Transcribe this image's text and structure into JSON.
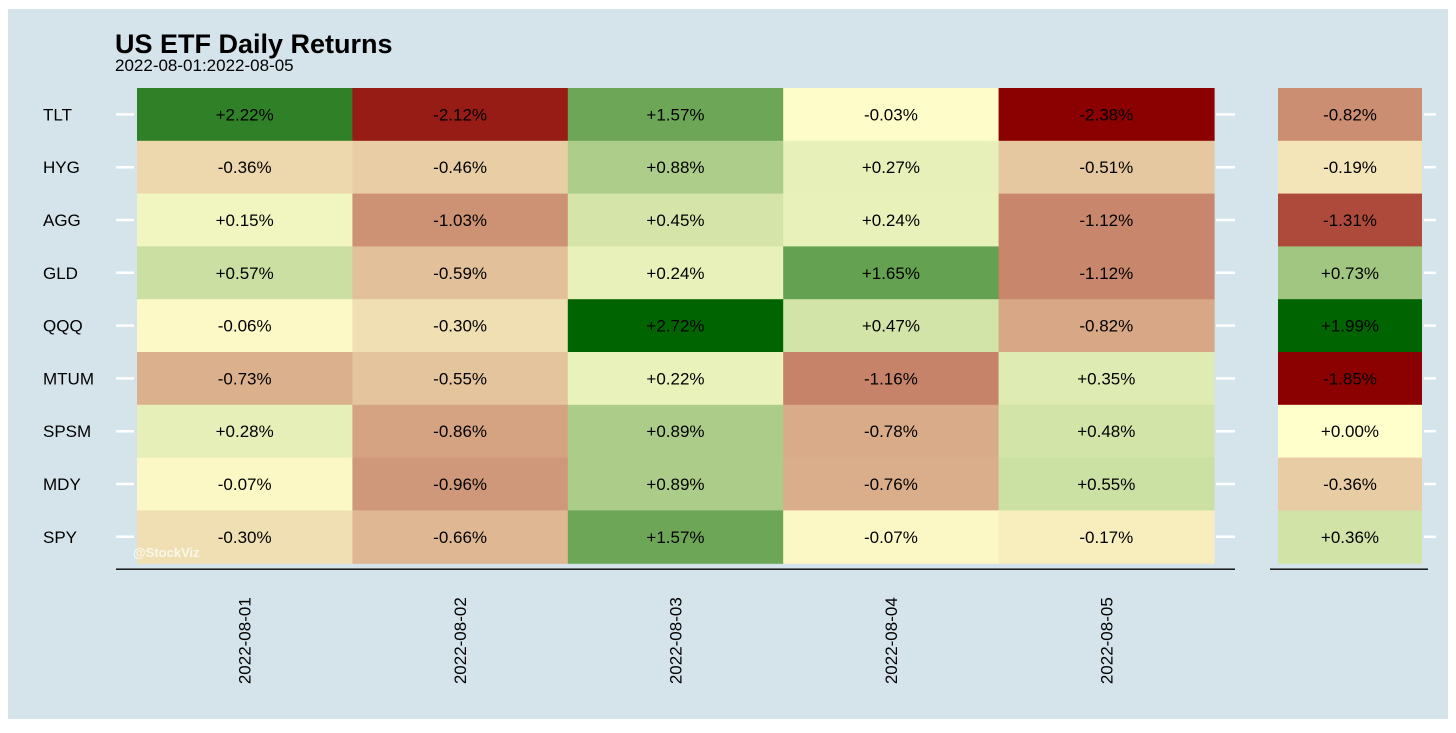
{
  "chart_data": {
    "type": "heatmap",
    "title": "US ETF Daily Returns",
    "subtitle": "2022-08-01:2022-08-05",
    "watermark": "@StockViz",
    "rows": [
      "TLT",
      "HYG",
      "AGG",
      "GLD",
      "QQQ",
      "MTUM",
      "SPSM",
      "MDY",
      "SPY"
    ],
    "columns": [
      "2022-08-01",
      "2022-08-02",
      "2022-08-03",
      "2022-08-04",
      "2022-08-05"
    ],
    "cells": [
      [
        "+2.22%",
        "-2.12%",
        "+1.57%",
        "-0.03%",
        "-2.38%"
      ],
      [
        "-0.36%",
        "-0.46%",
        "+0.88%",
        "+0.27%",
        "-0.51%"
      ],
      [
        "+0.15%",
        "-1.03%",
        "+0.45%",
        "+0.24%",
        "-1.12%"
      ],
      [
        "+0.57%",
        "-0.59%",
        "+0.24%",
        "+1.65%",
        "-1.12%"
      ],
      [
        "-0.06%",
        "-0.30%",
        "+2.72%",
        "+0.47%",
        "-0.82%"
      ],
      [
        "-0.73%",
        "-0.55%",
        "+0.22%",
        "-1.16%",
        "+0.35%"
      ],
      [
        "+0.28%",
        "-0.86%",
        "+0.89%",
        "-0.78%",
        "+0.48%"
      ],
      [
        "-0.07%",
        "-0.96%",
        "+0.89%",
        "-0.76%",
        "+0.55%"
      ],
      [
        "-0.30%",
        "-0.66%",
        "+1.57%",
        "-0.07%",
        "-0.17%"
      ]
    ],
    "values": [
      [
        2.22,
        -2.12,
        1.57,
        -0.03,
        -2.38
      ],
      [
        -0.36,
        -0.46,
        0.88,
        0.27,
        -0.51
      ],
      [
        0.15,
        -1.03,
        0.45,
        0.24,
        -1.12
      ],
      [
        0.57,
        -0.59,
        0.24,
        1.65,
        -1.12
      ],
      [
        -0.06,
        -0.3,
        2.72,
        0.47,
        -0.82
      ],
      [
        -0.73,
        -0.55,
        0.22,
        -1.16,
        0.35
      ],
      [
        0.28,
        -0.86,
        0.89,
        -0.78,
        0.48
      ],
      [
        -0.07,
        -0.96,
        0.89,
        -0.76,
        0.55
      ],
      [
        -0.3,
        -0.66,
        1.57,
        -0.07,
        -0.17
      ]
    ],
    "total_cells": [
      "-0.82%",
      "-0.19%",
      "-1.31%",
      "+0.73%",
      "+1.99%",
      "-1.85%",
      "+0.00%",
      "-0.36%",
      "+0.36%"
    ],
    "total_values": [
      -0.82,
      -0.19,
      -1.31,
      0.73,
      1.99,
      -1.85,
      0.0,
      -0.36,
      0.36
    ],
    "colors": {
      "background": "#d5e4eb",
      "low": "#8b0000",
      "mid": "#ffffcc",
      "high": "#006400",
      "text": "#000000",
      "axis": "#000000",
      "tick": "#ffffff",
      "watermark": "#ffffff"
    }
  }
}
